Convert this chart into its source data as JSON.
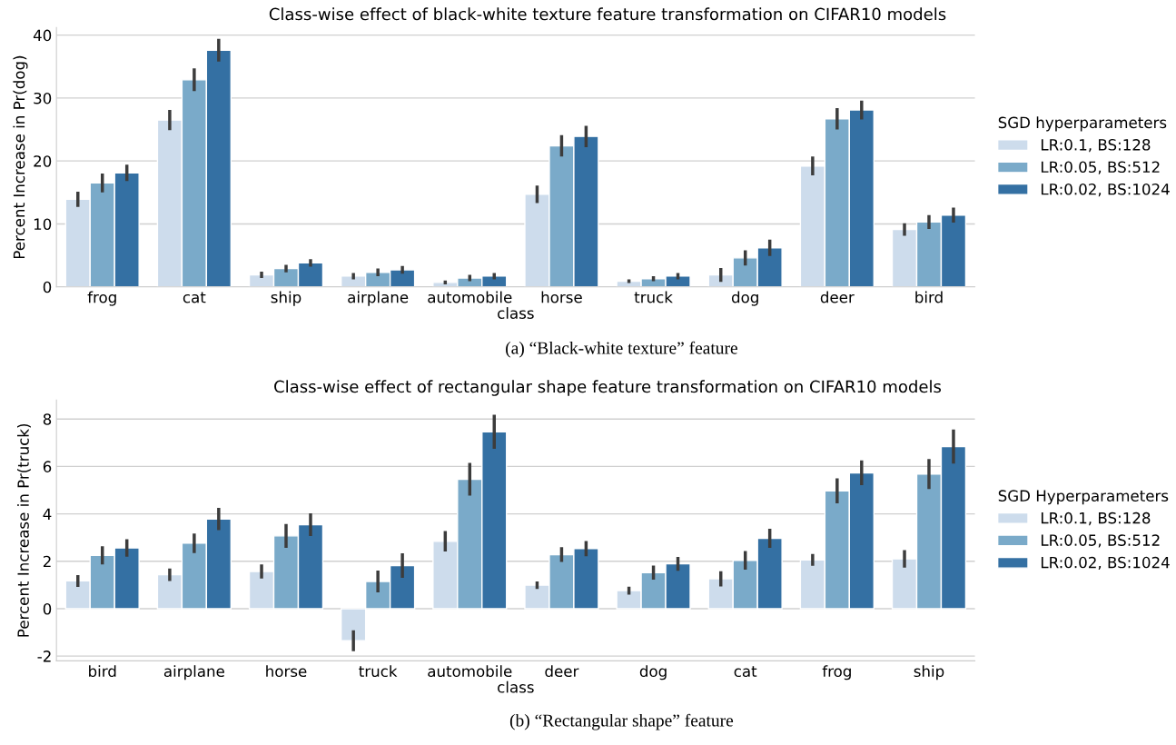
{
  "chart_data": [
    {
      "type": "bar",
      "title": "Class-wise effect of black-white texture feature transformation on CIFAR10 models",
      "xlabel": "class",
      "ylabel": "Percent Increase in Pr(dog)",
      "legend_title": "SGD hyperparameters",
      "legend": "right",
      "grid": "y",
      "categories": [
        "frog",
        "cat",
        "ship",
        "airplane",
        "automobile",
        "horse",
        "truck",
        "dog",
        "deer",
        "bird"
      ],
      "ylim": [
        0,
        41.2
      ],
      "yticks": [
        0,
        10,
        20,
        30,
        40
      ],
      "series": [
        {
          "name": "LR:0.1, BS:128",
          "color": "#cddcec",
          "values": [
            13.9,
            26.5,
            1.9,
            1.7,
            0.7,
            14.7,
            0.9,
            1.9,
            19.2,
            9.1
          ],
          "errors": [
            1.2,
            1.6,
            0.5,
            0.5,
            0.3,
            1.4,
            0.3,
            1.1,
            1.5,
            1.0
          ]
        },
        {
          "name": "LR:0.05, BS:512",
          "color": "#7aaac9",
          "values": [
            16.5,
            32.9,
            2.9,
            2.3,
            1.4,
            22.4,
            1.3,
            4.6,
            26.7,
            10.3
          ],
          "errors": [
            1.5,
            1.8,
            0.6,
            0.6,
            0.5,
            1.7,
            0.4,
            1.2,
            1.7,
            1.1
          ]
        },
        {
          "name": "LR:0.02, BS:1024",
          "color": "#3470a3",
          "values": [
            18.1,
            37.6,
            3.8,
            2.7,
            1.7,
            23.9,
            1.7,
            6.2,
            28.1,
            11.4
          ],
          "errors": [
            1.3,
            1.8,
            0.6,
            0.6,
            0.5,
            1.7,
            0.5,
            1.3,
            1.5,
            1.2
          ]
        }
      ],
      "annotations": [
        "(a) “Black-white texture” feature"
      ]
    },
    {
      "type": "bar",
      "title": "Class-wise effect of rectangular shape feature transformation on CIFAR10 models",
      "xlabel": "class",
      "ylabel": "Percent Increase in Pr(truck)",
      "legend_title": "SGD Hyperparameters",
      "legend": "right",
      "grid": "y",
      "categories": [
        "bird",
        "airplane",
        "horse",
        "truck",
        "automobile",
        "deer",
        "dog",
        "cat",
        "frog",
        "ship"
      ],
      "ylim": [
        -2.2,
        8.8
      ],
      "yticks": [
        -2,
        0,
        2,
        4,
        6,
        8
      ],
      "series": [
        {
          "name": "LR:0.1, BS:128",
          "color": "#cddcec",
          "values": [
            1.17,
            1.43,
            1.57,
            -1.35,
            2.84,
            0.99,
            0.76,
            1.26,
            2.06,
            2.1
          ],
          "errors": [
            0.25,
            0.26,
            0.3,
            0.44,
            0.43,
            0.16,
            0.17,
            0.32,
            0.25,
            0.37
          ]
        },
        {
          "name": "LR:0.05, BS:512",
          "color": "#7aaac9",
          "values": [
            2.25,
            2.76,
            3.07,
            1.15,
            5.46,
            2.28,
            1.52,
            2.04,
            4.97,
            5.68
          ],
          "errors": [
            0.38,
            0.41,
            0.5,
            0.46,
            0.69,
            0.31,
            0.3,
            0.39,
            0.53,
            0.63
          ]
        },
        {
          "name": "LR:0.02, BS:1024",
          "color": "#3470a3",
          "values": [
            2.56,
            3.78,
            3.54,
            1.82,
            7.46,
            2.53,
            1.89,
            2.97,
            5.73,
            6.84
          ],
          "errors": [
            0.37,
            0.47,
            0.48,
            0.52,
            0.72,
            0.32,
            0.29,
            0.4,
            0.52,
            0.72
          ]
        }
      ],
      "annotations": [
        "(b) “Rectangular shape” feature"
      ]
    }
  ]
}
